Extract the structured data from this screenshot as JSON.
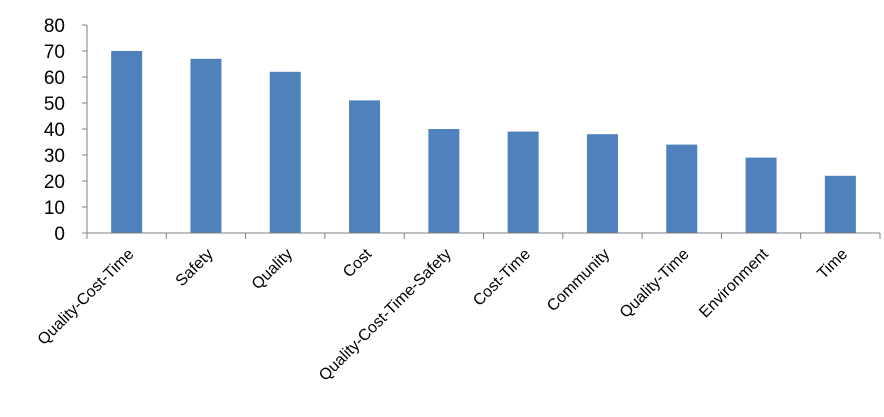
{
  "chart_data": {
    "type": "bar",
    "categories": [
      "Quality-Cost-Time",
      "Safety",
      "Quality",
      "Cost",
      "Quality-Cost-Time-Safety",
      "Cost-Time",
      "Community",
      "Quality-Time",
      "Environment",
      "Time"
    ],
    "values": [
      70,
      67,
      62,
      51,
      40,
      39,
      38,
      34,
      29,
      22
    ],
    "ylim": [
      0,
      80
    ],
    "yticks": [
      "0",
      "10",
      "20",
      "30",
      "40",
      "50",
      "60",
      "70",
      "80"
    ],
    "grid": false,
    "legend": "none",
    "bar_color": "#4F81BD",
    "axis_color": "#808080"
  }
}
